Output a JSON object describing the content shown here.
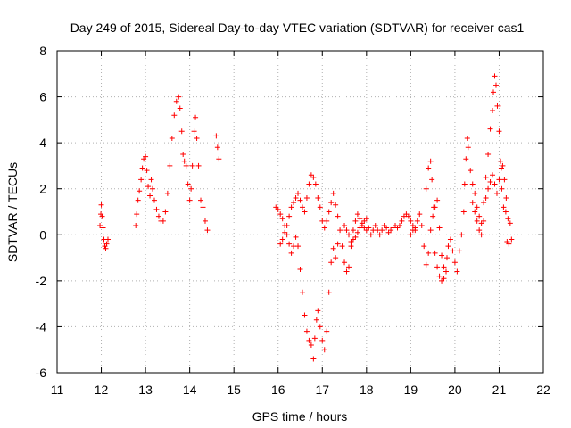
{
  "chart_data": {
    "type": "scatter",
    "title": "Day 249 of 2015, Sidereal Day-to-day VTEC variation (SDTVAR) for receiver cas1",
    "xlabel": "GPS time / hours",
    "ylabel": "SDTVAR / TECUs",
    "xlim": [
      11,
      22
    ],
    "ylim": [
      -6,
      8
    ],
    "xticks": [
      11,
      12,
      13,
      14,
      15,
      16,
      17,
      18,
      19,
      20,
      21,
      22
    ],
    "yticks": [
      -6,
      -4,
      -2,
      0,
      2,
      4,
      6,
      8
    ],
    "grid": true,
    "marker": "+",
    "color": "#ff0000",
    "series": [
      {
        "name": "SDTVAR",
        "points": [
          [
            11.97,
            0.4
          ],
          [
            11.99,
            0.9
          ],
          [
            12.0,
            1.3
          ],
          [
            12.02,
            0.8
          ],
          [
            12.04,
            0.3
          ],
          [
            12.06,
            -0.2
          ],
          [
            12.08,
            -0.5
          ],
          [
            12.1,
            -0.6
          ],
          [
            12.12,
            -0.4
          ],
          [
            12.15,
            -0.2
          ],
          [
            12.78,
            0.4
          ],
          [
            12.8,
            0.9
          ],
          [
            12.83,
            1.5
          ],
          [
            12.86,
            1.9
          ],
          [
            12.9,
            2.4
          ],
          [
            12.93,
            2.9
          ],
          [
            12.96,
            3.3
          ],
          [
            13.0,
            3.4
          ],
          [
            13.03,
            2.8
          ],
          [
            13.06,
            2.1
          ],
          [
            13.1,
            1.7
          ],
          [
            13.13,
            2.4
          ],
          [
            13.16,
            2.0
          ],
          [
            13.2,
            1.5
          ],
          [
            13.25,
            1.1
          ],
          [
            13.3,
            0.8
          ],
          [
            13.35,
            0.6
          ],
          [
            13.4,
            0.6
          ],
          [
            13.45,
            1.0
          ],
          [
            13.5,
            1.8
          ],
          [
            13.55,
            3.0
          ],
          [
            13.6,
            4.2
          ],
          [
            13.65,
            5.2
          ],
          [
            13.7,
            5.8
          ],
          [
            13.75,
            6.0
          ],
          [
            13.78,
            5.5
          ],
          [
            13.82,
            4.5
          ],
          [
            13.85,
            3.5
          ],
          [
            13.88,
            3.2
          ],
          [
            13.92,
            3.0
          ],
          [
            13.96,
            2.2
          ],
          [
            14.0,
            1.5
          ],
          [
            14.03,
            2.0
          ],
          [
            14.06,
            3.0
          ],
          [
            14.1,
            4.5
          ],
          [
            14.13,
            5.1
          ],
          [
            14.16,
            4.2
          ],
          [
            14.2,
            3.0
          ],
          [
            14.25,
            1.5
          ],
          [
            14.3,
            1.2
          ],
          [
            14.35,
            0.6
          ],
          [
            14.4,
            0.2
          ],
          [
            14.6,
            4.3
          ],
          [
            14.63,
            3.8
          ],
          [
            14.66,
            3.3
          ],
          [
            15.95,
            1.2
          ],
          [
            16.0,
            1.1
          ],
          [
            16.05,
            0.9
          ],
          [
            16.1,
            0.7
          ],
          [
            16.15,
            0.4
          ],
          [
            16.2,
            0.0
          ],
          [
            16.25,
            -0.4
          ],
          [
            16.3,
            -0.8
          ],
          [
            16.35,
            -0.5
          ],
          [
            16.4,
            -0.1
          ],
          [
            16.45,
            -0.5
          ],
          [
            16.5,
            -1.5
          ],
          [
            16.55,
            -2.5
          ],
          [
            16.6,
            -3.5
          ],
          [
            16.65,
            -4.2
          ],
          [
            16.7,
            -4.6
          ],
          [
            16.75,
            -4.8
          ],
          [
            16.8,
            -5.4
          ],
          [
            16.83,
            -4.5
          ],
          [
            16.87,
            -3.7
          ],
          [
            16.9,
            -3.3
          ],
          [
            16.95,
            -4.0
          ],
          [
            17.0,
            -4.6
          ],
          [
            17.05,
            -5.0
          ],
          [
            17.1,
            -4.2
          ],
          [
            17.15,
            -2.5
          ],
          [
            17.2,
            -1.2
          ],
          [
            17.25,
            -0.6
          ],
          [
            17.3,
            -1.0
          ],
          [
            17.35,
            -0.4
          ],
          [
            16.05,
            -0.4
          ],
          [
            16.1,
            -0.2
          ],
          [
            16.15,
            0.1
          ],
          [
            16.2,
            0.4
          ],
          [
            16.25,
            0.8
          ],
          [
            16.3,
            1.2
          ],
          [
            16.35,
            1.4
          ],
          [
            16.4,
            1.6
          ],
          [
            16.45,
            1.8
          ],
          [
            16.5,
            1.5
          ],
          [
            16.55,
            1.2
          ],
          [
            16.6,
            1.0
          ],
          [
            16.65,
            1.6
          ],
          [
            16.7,
            2.2
          ],
          [
            16.75,
            2.6
          ],
          [
            16.8,
            2.5
          ],
          [
            16.85,
            2.2
          ],
          [
            16.9,
            1.6
          ],
          [
            16.95,
            1.2
          ],
          [
            17.0,
            0.6
          ],
          [
            17.05,
            0.3
          ],
          [
            17.1,
            0.6
          ],
          [
            17.15,
            1.0
          ],
          [
            17.2,
            1.4
          ],
          [
            17.25,
            1.8
          ],
          [
            17.3,
            1.3
          ],
          [
            17.35,
            0.8
          ],
          [
            17.4,
            0.2
          ],
          [
            17.45,
            -0.5
          ],
          [
            17.5,
            -1.2
          ],
          [
            17.55,
            -1.6
          ],
          [
            17.6,
            -1.4
          ],
          [
            17.65,
            -0.5
          ],
          [
            17.7,
            0.2
          ],
          [
            17.75,
            0.6
          ],
          [
            17.8,
            0.9
          ],
          [
            17.85,
            0.7
          ],
          [
            17.9,
            0.5
          ],
          [
            17.95,
            0.3
          ],
          [
            18.0,
            0.2
          ],
          [
            17.5,
            0.4
          ],
          [
            17.55,
            0.2
          ],
          [
            17.6,
            0.0
          ],
          [
            17.65,
            -0.3
          ],
          [
            17.7,
            -0.2
          ],
          [
            17.75,
            -0.1
          ],
          [
            17.8,
            0.1
          ],
          [
            17.85,
            0.3
          ],
          [
            17.9,
            0.4
          ],
          [
            17.95,
            0.6
          ],
          [
            18.0,
            0.7
          ],
          [
            18.05,
            0.3
          ],
          [
            18.1,
            0.0
          ],
          [
            18.15,
            0.2
          ],
          [
            18.2,
            0.4
          ],
          [
            18.25,
            0.2
          ],
          [
            18.3,
            0.0
          ],
          [
            18.35,
            0.2
          ],
          [
            18.4,
            0.4
          ],
          [
            18.45,
            0.3
          ],
          [
            18.5,
            0.1
          ],
          [
            18.55,
            0.2
          ],
          [
            18.6,
            0.3
          ],
          [
            18.65,
            0.4
          ],
          [
            18.7,
            0.3
          ],
          [
            18.75,
            0.4
          ],
          [
            18.8,
            0.6
          ],
          [
            18.85,
            0.8
          ],
          [
            18.9,
            0.9
          ],
          [
            18.95,
            0.8
          ],
          [
            19.0,
            0.6
          ],
          [
            19.05,
            0.4
          ],
          [
            19.1,
            0.2
          ],
          [
            19.0,
            0.0
          ],
          [
            19.05,
            0.2
          ],
          [
            19.1,
            0.3
          ],
          [
            19.15,
            0.6
          ],
          [
            19.2,
            0.9
          ],
          [
            19.25,
            0.4
          ],
          [
            19.3,
            -0.5
          ],
          [
            19.35,
            -1.3
          ],
          [
            19.4,
            -0.8
          ],
          [
            19.45,
            0.2
          ],
          [
            19.5,
            0.8
          ],
          [
            19.55,
            1.2
          ],
          [
            19.6,
            1.5
          ],
          [
            19.65,
            0.3
          ],
          [
            19.7,
            -0.9
          ],
          [
            19.75,
            -1.4
          ],
          [
            19.8,
            -1.6
          ],
          [
            19.75,
            -1.9
          ],
          [
            19.7,
            -2.0
          ],
          [
            19.65,
            -1.8
          ],
          [
            19.6,
            -1.4
          ],
          [
            19.55,
            -0.8
          ],
          [
            19.35,
            2.0
          ],
          [
            19.4,
            2.9
          ],
          [
            19.45,
            3.2
          ],
          [
            19.48,
            2.4
          ],
          [
            19.52,
            1.2
          ],
          [
            19.82,
            -1.0
          ],
          [
            19.85,
            -0.5
          ],
          [
            19.9,
            -0.2
          ],
          [
            19.95,
            -0.7
          ],
          [
            20.0,
            -1.2
          ],
          [
            20.05,
            -1.6
          ],
          [
            20.1,
            -0.7
          ],
          [
            20.15,
            0.0
          ],
          [
            20.2,
            1.0
          ],
          [
            20.22,
            2.2
          ],
          [
            20.25,
            3.3
          ],
          [
            20.28,
            4.2
          ],
          [
            20.3,
            3.8
          ],
          [
            20.35,
            2.8
          ],
          [
            20.4,
            2.2
          ],
          [
            20.45,
            1.8
          ],
          [
            20.5,
            1.2
          ],
          [
            20.55,
            0.8
          ],
          [
            20.6,
            0.5
          ],
          [
            20.65,
            1.4
          ],
          [
            20.7,
            2.5
          ],
          [
            20.75,
            3.5
          ],
          [
            20.8,
            4.6
          ],
          [
            20.85,
            5.4
          ],
          [
            20.87,
            6.2
          ],
          [
            20.9,
            6.9
          ],
          [
            20.93,
            6.5
          ],
          [
            20.96,
            5.6
          ],
          [
            21.0,
            4.5
          ],
          [
            21.03,
            3.2
          ],
          [
            21.06,
            2.0
          ],
          [
            21.1,
            1.2
          ],
          [
            21.15,
            1.0
          ],
          [
            21.2,
            0.7
          ],
          [
            21.25,
            0.5
          ],
          [
            21.28,
            -0.2
          ],
          [
            21.22,
            -0.4
          ],
          [
            21.18,
            -0.3
          ],
          [
            20.4,
            1.4
          ],
          [
            20.45,
            1.0
          ],
          [
            20.5,
            0.6
          ],
          [
            20.55,
            0.2
          ],
          [
            20.6,
            0.0
          ],
          [
            20.65,
            0.6
          ],
          [
            20.7,
            1.6
          ],
          [
            20.75,
            2.0
          ],
          [
            20.8,
            2.3
          ],
          [
            20.85,
            2.6
          ],
          [
            20.9,
            2.2
          ],
          [
            20.95,
            1.8
          ],
          [
            21.0,
            2.4
          ],
          [
            21.05,
            2.9
          ],
          [
            21.08,
            3.0
          ],
          [
            21.12,
            2.4
          ],
          [
            21.16,
            1.6
          ]
        ]
      }
    ]
  }
}
